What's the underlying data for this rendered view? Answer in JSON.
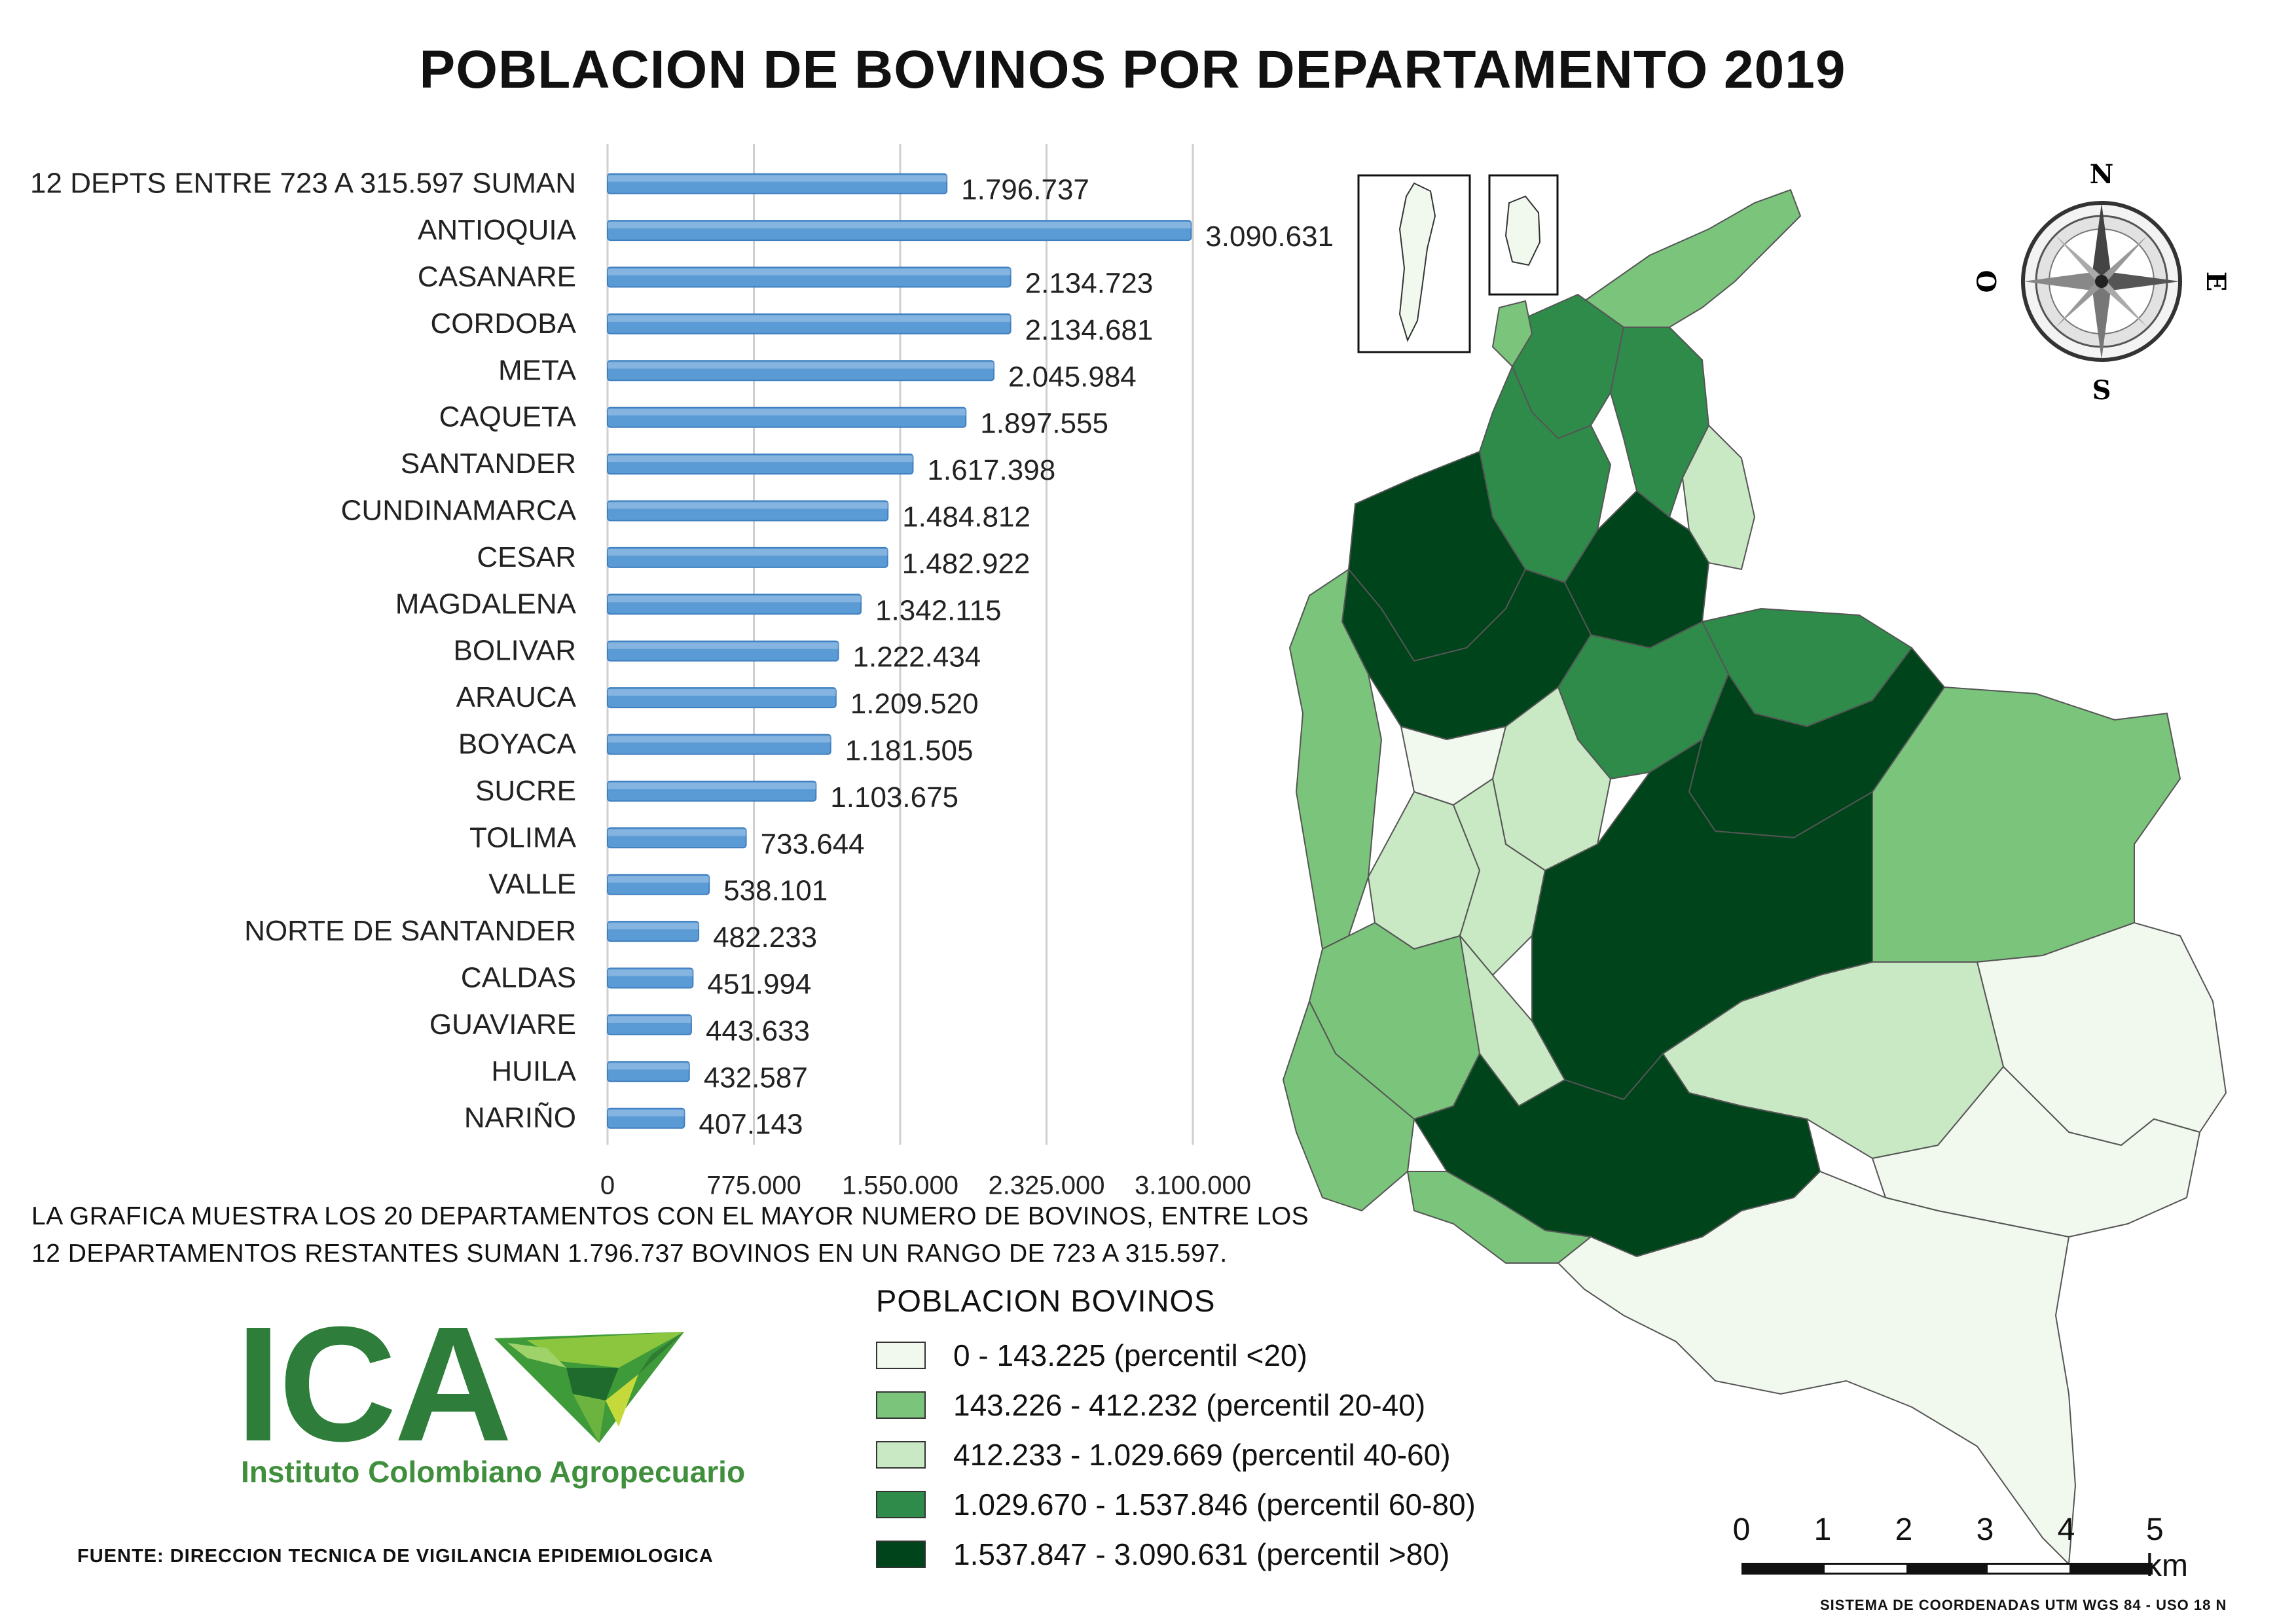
{
  "title": "POBLACION DE BOVINOS POR DEPARTAMENTO 2019",
  "chart_data": {
    "type": "bar",
    "orientation": "horizontal",
    "categories": [
      "12 DEPTS ENTRE 723 A 315.597 SUMAN",
      "ANTIOQUIA",
      "CASANARE",
      "CORDOBA",
      "META",
      "CAQUETA",
      "SANTANDER",
      "CUNDINAMARCA",
      "CESAR",
      "MAGDALENA",
      "BOLIVAR",
      "ARAUCA",
      "BOYACA",
      "SUCRE",
      "TOLIMA",
      "VALLE",
      "NORTE DE SANTANDER",
      "CALDAS",
      "GUAVIARE",
      "HUILA",
      "NARIÑO"
    ],
    "values": [
      1796737,
      3090631,
      2134723,
      2134681,
      2045984,
      1897555,
      1617398,
      1484812,
      1482922,
      1342115,
      1222434,
      1209520,
      1181505,
      1103675,
      733644,
      538101,
      482233,
      451994,
      443633,
      432587,
      407143
    ],
    "value_labels": [
      "1.796.737",
      "3.090.631",
      "2.134.723",
      "2.134.681",
      "2.045.984",
      "1.897.555",
      "1.617.398",
      "1.484.812",
      "1.482.922",
      "1.342.115",
      "1.222.434",
      "1.209.520",
      "1.181.505",
      "1.103.675",
      "733.644",
      "538.101",
      "482.233",
      "451.994",
      "443.633",
      "432.587",
      "407.143"
    ],
    "xlim": [
      0,
      3100000
    ],
    "xticks": [
      0,
      775000,
      1550000,
      2325000,
      3100000
    ],
    "xtick_labels": [
      "0",
      "775.000",
      "1.550.000",
      "2.325.000",
      "3.100.000"
    ],
    "bar_color": "#5b9bd5",
    "grid": true
  },
  "note": "LA GRAFICA MUESTRA LOS 20 DEPARTAMENTOS CON EL MAYOR NUMERO DE BOVINOS, ENTRE LOS 12 DEPARTAMENTOS RESTANTES SUMAN 1.796.737 BOVINOS EN UN RANGO DE 723 A 315.597.",
  "logo": {
    "name": "ICA",
    "subtitle": "Instituto Colombiano Agropecuario"
  },
  "source": "FUENTE: DIRECCION TECNICA DE VIGILANCIA EPIDEMIOLOGICA",
  "legend": {
    "title": "POBLACION BOVINOS",
    "items": [
      {
        "label": "0 - 143.225 (percentil <20)",
        "color": "#f1f8ee"
      },
      {
        "label": "143.226 - 412.232 (percentil 20-40)",
        "color": "#7bc47b"
      },
      {
        "label": "412.233 - 1.029.669 (percentil 40-60)",
        "color": "#c9e8c4"
      },
      {
        "label": "1.029.670 - 1.537.846 (percentil 60-80)",
        "color": "#2e8b4a"
      },
      {
        "label": "1.537.847 - 3.090.631 (percentil >80)",
        "color": "#00441b"
      }
    ]
  },
  "compass": {
    "n": "N",
    "s": "S",
    "e": "E",
    "w": "O"
  },
  "scale": {
    "labels": [
      "0",
      "1",
      "2",
      "3",
      "4",
      "5 km"
    ]
  },
  "coordinate_system": "SISTEMA DE COORDENADAS UTM WGS 84 - USO 18 N"
}
